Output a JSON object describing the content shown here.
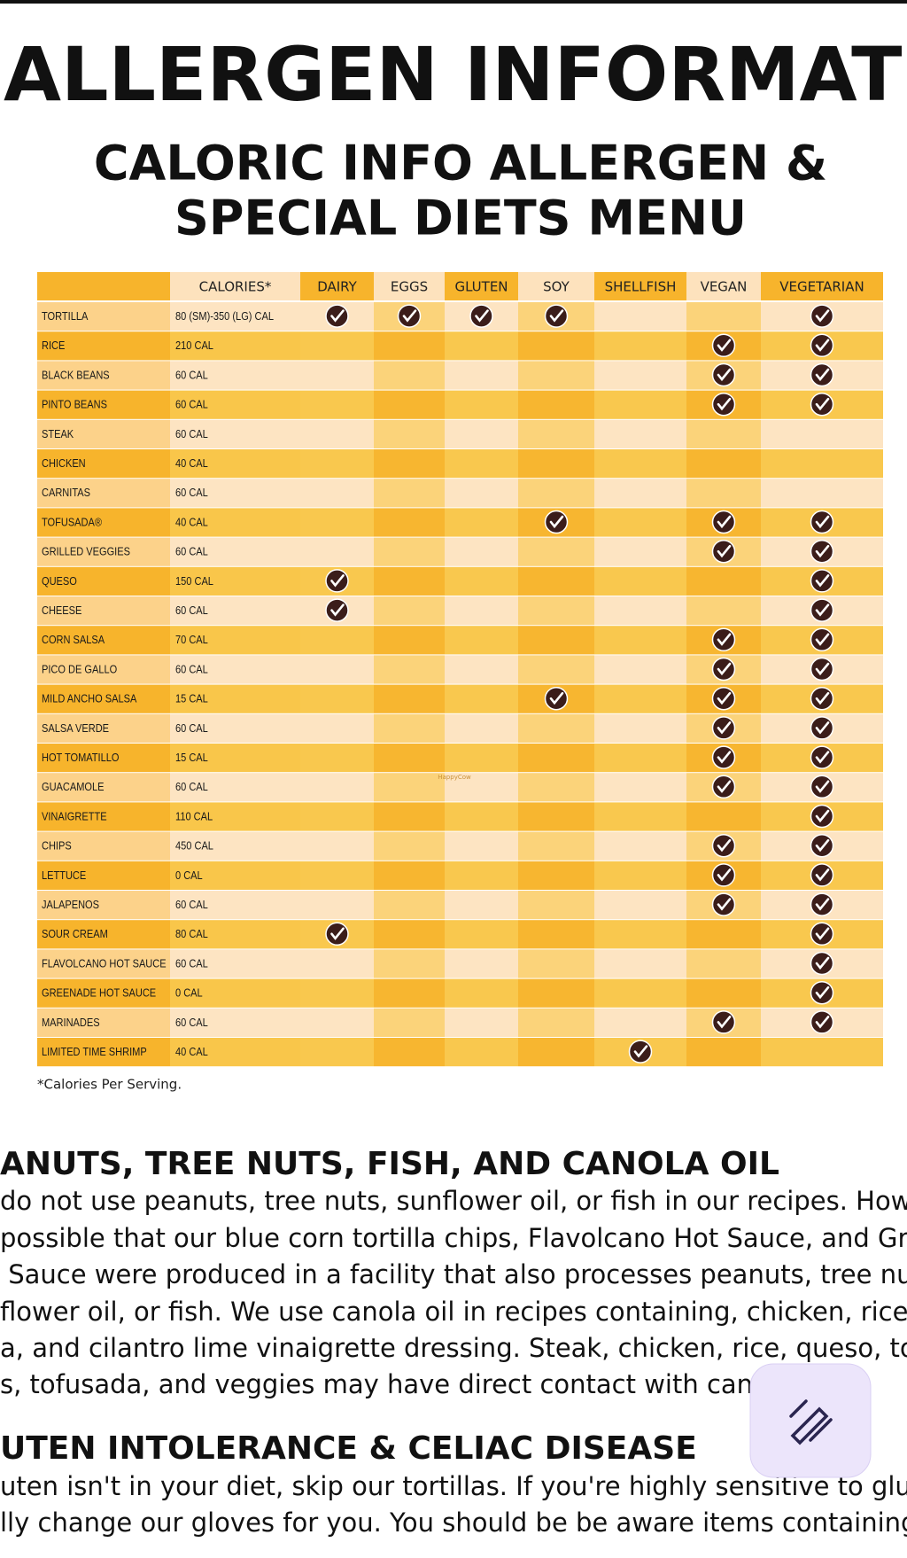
{
  "header": {
    "title": "ALLERGEN INFORMATION",
    "subtitle_lines": [
      "CALORIC INFO ALLERGEN &",
      "SPECIAL DIETS MENU"
    ]
  },
  "table": {
    "columns": [
      "CALORIES*",
      "DAIRY",
      "EGGS",
      "GLUTEN",
      "SOY",
      "SHELLFISH",
      "VEGAN",
      "VEGETARIAN"
    ],
    "rows": [
      {
        "item": "TORTILLA",
        "calories": "80 (SM)-350 (LG) CAL",
        "checks": [
          true,
          true,
          true,
          true,
          false,
          false,
          true
        ]
      },
      {
        "item": "RICE",
        "calories": "210 CAL",
        "checks": [
          false,
          false,
          false,
          false,
          false,
          true,
          true
        ]
      },
      {
        "item": "BLACK BEANS",
        "calories": "60 CAL",
        "checks": [
          false,
          false,
          false,
          false,
          false,
          true,
          true
        ]
      },
      {
        "item": "PINTO BEANS",
        "calories": "60 CAL",
        "checks": [
          false,
          false,
          false,
          false,
          false,
          true,
          true
        ]
      },
      {
        "item": "STEAK",
        "calories": "60 CAL",
        "checks": [
          false,
          false,
          false,
          false,
          false,
          false,
          false
        ]
      },
      {
        "item": "CHICKEN",
        "calories": "40 CAL",
        "checks": [
          false,
          false,
          false,
          false,
          false,
          false,
          false
        ]
      },
      {
        "item": "CARNITAS",
        "calories": "60 CAL",
        "checks": [
          false,
          false,
          false,
          false,
          false,
          false,
          false
        ]
      },
      {
        "item": "TOFUSADA®",
        "calories": "40 CAL",
        "checks": [
          false,
          false,
          false,
          true,
          false,
          true,
          true
        ]
      },
      {
        "item": "GRILLED VEGGIES",
        "calories": "60 CAL",
        "checks": [
          false,
          false,
          false,
          false,
          false,
          true,
          true
        ]
      },
      {
        "item": "QUESO",
        "calories": "150 CAL",
        "checks": [
          true,
          false,
          false,
          false,
          false,
          false,
          true
        ]
      },
      {
        "item": "CHEESE",
        "calories": "60 CAL",
        "checks": [
          true,
          false,
          false,
          false,
          false,
          false,
          true
        ]
      },
      {
        "item": "CORN SALSA",
        "calories": "70 CAL",
        "checks": [
          false,
          false,
          false,
          false,
          false,
          true,
          true
        ]
      },
      {
        "item": "PICO DE GALLO",
        "calories": "60 CAL",
        "checks": [
          false,
          false,
          false,
          false,
          false,
          true,
          true
        ]
      },
      {
        "item": "MILD ANCHO SALSA",
        "calories": "15 CAL",
        "checks": [
          false,
          false,
          false,
          true,
          false,
          true,
          true
        ]
      },
      {
        "item": "SALSA VERDE",
        "calories": "60 CAL",
        "checks": [
          false,
          false,
          false,
          false,
          false,
          true,
          true
        ]
      },
      {
        "item": "HOT TOMATILLO",
        "calories": "15 CAL",
        "checks": [
          false,
          false,
          false,
          false,
          false,
          true,
          true
        ]
      },
      {
        "item": "GUACAMOLE",
        "calories": "60 CAL",
        "checks": [
          false,
          false,
          false,
          false,
          false,
          true,
          true
        ]
      },
      {
        "item": "VINAIGRETTE",
        "calories": "110 CAL",
        "checks": [
          false,
          false,
          false,
          false,
          false,
          false,
          true
        ]
      },
      {
        "item": "CHIPS",
        "calories": "450 CAL",
        "checks": [
          false,
          false,
          false,
          false,
          false,
          true,
          true
        ]
      },
      {
        "item": "LETTUCE",
        "calories": "0 CAL",
        "checks": [
          false,
          false,
          false,
          false,
          false,
          true,
          true
        ]
      },
      {
        "item": "JALAPENOS",
        "calories": "60 CAL",
        "checks": [
          false,
          false,
          false,
          false,
          false,
          true,
          true
        ]
      },
      {
        "item": "SOUR CREAM",
        "calories": "80 CAL",
        "checks": [
          true,
          false,
          false,
          false,
          false,
          false,
          true
        ]
      },
      {
        "item": "FLAVOLCANO HOT SAUCE",
        "calories": "60 CAL",
        "checks": [
          false,
          false,
          false,
          false,
          false,
          false,
          true
        ]
      },
      {
        "item": "GREENADE HOT SAUCE",
        "calories": "0 CAL",
        "checks": [
          false,
          false,
          false,
          false,
          false,
          false,
          true
        ]
      },
      {
        "item": "MARINADES",
        "calories": "60 CAL",
        "checks": [
          false,
          false,
          false,
          false,
          false,
          true,
          true
        ]
      },
      {
        "item": "LIMITED TIME SHRIMP",
        "calories": "40 CAL",
        "checks": [
          false,
          false,
          false,
          false,
          true,
          false,
          false
        ]
      }
    ],
    "watermark": "HappyCow",
    "footnote": "*Calories Per Serving."
  },
  "sections": [
    {
      "heading": "ANUTS, TREE NUTS, FISH, AND CANOLA OIL",
      "lines": [
        "do not use peanuts, tree nuts, sunflower oil, or fish in our recipes. Howev",
        "possible that our blue corn tortilla chips, Flavolcano Hot Sauce, and Green",
        " Sauce were produced in a facility that also processes peanuts, tree nuts,",
        "flower oil, or fish. We use canola oil in recipes containing, chicken, rice, co",
        "a, and cilantro lime vinaigrette dressing. Steak, chicken, rice, queso, tortill",
        "s, tofusada, and veggies may have direct contact with canola"
      ]
    },
    {
      "heading": "UTEN INTOLERANCE & CELIAC DISEASE",
      "lines": [
        "uten isn't in your diet, skip our tortillas. If you're highly sensitive to gluten",
        "lly change our gloves for you. You should be be aware items containing co"
      ]
    }
  ]
}
